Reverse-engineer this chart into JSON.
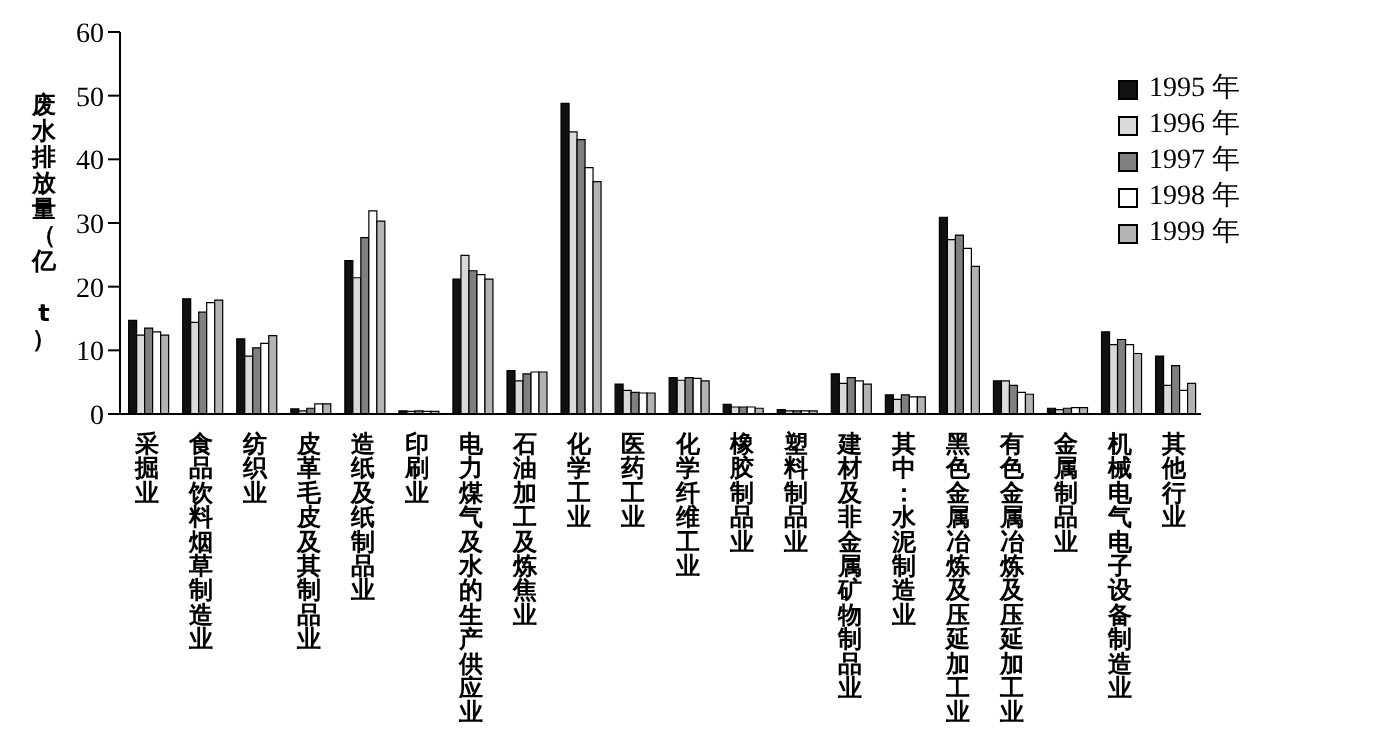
{
  "chart_data": {
    "type": "bar",
    "ylabel": "废水排放量（亿 t）",
    "categories": [
      "采掘业",
      "食品饮料烟草制造业",
      "纺织业",
      "皮革毛皮及其制品业",
      "造纸及纸制品业",
      "印刷业",
      "电力煤气及水的生产供应业",
      "石油加工及炼焦业",
      "化学工业",
      "医药工业",
      "化学纤维工业",
      "橡胶制品业",
      "塑料制品业",
      "建材及非金属矿物制品业",
      "其中：水泥制造业",
      "黑色金属冶炼及压延加工业",
      "有色金属冶炼及压延加工业",
      "金属制品业",
      "机械电气电子设备制造业",
      "其他行业"
    ],
    "series": [
      {
        "name": "1995 年",
        "color": "#111111",
        "values": [
          14.7,
          18.1,
          11.8,
          0.8,
          24.1,
          0.5,
          21.2,
          6.8,
          48.8,
          4.7,
          5.7,
          1.5,
          0.7,
          6.3,
          3.0,
          30.9,
          5.2,
          0.9,
          12.9,
          9.1
        ]
      },
      {
        "name": "1996 年",
        "color": "#d9d9d9",
        "values": [
          12.4,
          14.4,
          9.1,
          0.5,
          21.4,
          0.4,
          24.9,
          5.2,
          44.3,
          3.7,
          5.3,
          1.1,
          0.5,
          4.8,
          2.3,
          27.4,
          5.2,
          0.7,
          10.9,
          4.5
        ]
      },
      {
        "name": "1997 年",
        "color": "#808080",
        "values": [
          13.5,
          16.0,
          10.4,
          0.9,
          27.7,
          0.5,
          22.5,
          6.3,
          43.1,
          3.4,
          5.7,
          1.1,
          0.5,
          5.7,
          3.0,
          28.1,
          4.5,
          0.9,
          11.7,
          7.6
        ]
      },
      {
        "name": "1998 年",
        "color": "#ffffff",
        "values": [
          12.9,
          17.5,
          11.1,
          1.6,
          31.9,
          0.4,
          21.9,
          6.6,
          38.7,
          3.3,
          5.6,
          1.1,
          0.5,
          5.2,
          2.7,
          26.0,
          3.4,
          1.0,
          10.9,
          3.7
        ]
      },
      {
        "name": "1999 年",
        "color": "#b3b3b3",
        "values": [
          12.4,
          17.9,
          12.3,
          1.6,
          30.3,
          0.4,
          21.2,
          6.6,
          36.5,
          3.3,
          5.2,
          0.9,
          0.5,
          4.7,
          2.7,
          23.2,
          3.1,
          1.0,
          9.5,
          4.8
        ]
      }
    ],
    "ylim": [
      0,
      60
    ],
    "yticks": [
      0,
      10,
      20,
      30,
      40,
      50,
      60
    ],
    "grid": false,
    "legend": "top right"
  }
}
